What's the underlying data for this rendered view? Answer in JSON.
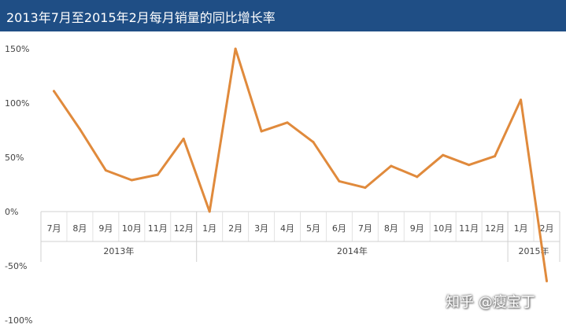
{
  "chart_data": {
    "type": "line",
    "title": "2013年7月至2015年2月每月销量的同比增长率",
    "x": [
      "7月",
      "8月",
      "9月",
      "10月",
      "11月",
      "12月",
      "1月",
      "2月",
      "3月",
      "4月",
      "5月",
      "6月",
      "7月",
      "8月",
      "9月",
      "10月",
      "11月",
      "12月",
      "1月",
      "2月"
    ],
    "groups": [
      {
        "label": "2013年",
        "count": 6
      },
      {
        "label": "2014年",
        "count": 12
      },
      {
        "label": "2015年",
        "count": 2
      }
    ],
    "series": [
      {
        "values": [
          111,
          76,
          38,
          29,
          34,
          67,
          0,
          150,
          74,
          82,
          64,
          28,
          22,
          42,
          32,
          52,
          43,
          51,
          103,
          -64
        ]
      }
    ],
    "ylim": [
      -100,
      150
    ],
    "yticks": [
      -100,
      -50,
      0,
      50,
      100,
      150
    ],
    "ytick_labels": [
      "-100%",
      "-50%",
      "0%",
      "50%",
      "100%",
      "150%"
    ],
    "line_color": "#e08a3c",
    "title_bar_color": "#1f4e85"
  },
  "watermark": "知乎 @瘦宝丁"
}
